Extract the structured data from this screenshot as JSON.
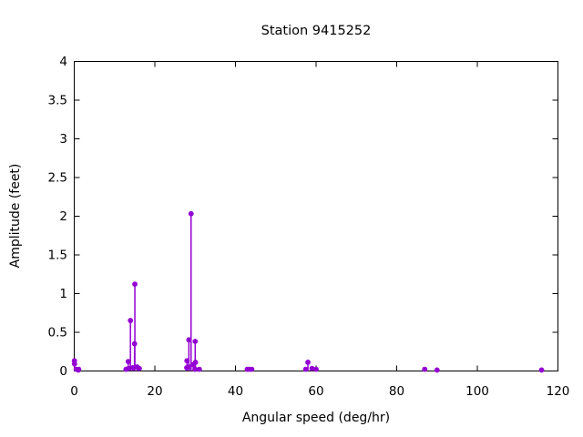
{
  "chart": {
    "title": "Station 9415252",
    "xlabel": "Angular speed (deg/hr)",
    "ylabel": "Amplitude (feet)"
  },
  "chart_data": {
    "type": "scatter",
    "style": "stem",
    "title": "Station 9415252",
    "xlabel": "Angular speed (deg/hr)",
    "ylabel": "Amplitude (feet)",
    "xlim": [
      0,
      120
    ],
    "ylim": [
      0,
      4
    ],
    "x_tick_values": [
      0,
      20,
      40,
      60,
      80,
      100,
      120
    ],
    "x_tick_labels": [
      "0",
      "20",
      "40",
      "60",
      "80",
      "100",
      "120"
    ],
    "y_tick_values": [
      0,
      0.5,
      1,
      1.5,
      2,
      2.5,
      3,
      3.5,
      4
    ],
    "y_tick_labels": [
      "0",
      "0.5",
      "1",
      "1.5",
      "2",
      "2.5",
      "3",
      "3.5",
      "4"
    ],
    "grid": false,
    "legend": null,
    "marker_color": "#9400D3",
    "axis_color": "#000000",
    "points": [
      [
        0.04,
        0.13
      ],
      [
        0.08,
        0.09
      ],
      [
        0.54,
        0.02
      ],
      [
        1.02,
        0.01
      ],
      [
        1.1,
        0.02
      ],
      [
        12.85,
        0.02
      ],
      [
        13.4,
        0.12
      ],
      [
        13.47,
        0.03
      ],
      [
        13.94,
        0.65
      ],
      [
        14.5,
        0.04
      ],
      [
        14.96,
        0.35
      ],
      [
        15.04,
        1.12
      ],
      [
        15.59,
        0.05
      ],
      [
        16.14,
        0.03
      ],
      [
        27.9,
        0.04
      ],
      [
        27.97,
        0.13
      ],
      [
        28.44,
        0.4
      ],
      [
        28.51,
        0.05
      ],
      [
        28.98,
        2.03
      ],
      [
        29.53,
        0.08
      ],
      [
        29.96,
        0.02
      ],
      [
        30.0,
        0.38
      ],
      [
        30.08,
        0.11
      ],
      [
        31.02,
        0.02
      ],
      [
        42.93,
        0.02
      ],
      [
        43.48,
        0.02
      ],
      [
        44.03,
        0.02
      ],
      [
        57.42,
        0.02
      ],
      [
        57.97,
        0.11
      ],
      [
        58.98,
        0.03
      ],
      [
        60.0,
        0.02
      ],
      [
        86.95,
        0.02
      ],
      [
        90.0,
        0.01
      ],
      [
        115.94,
        0.01
      ]
    ]
  }
}
